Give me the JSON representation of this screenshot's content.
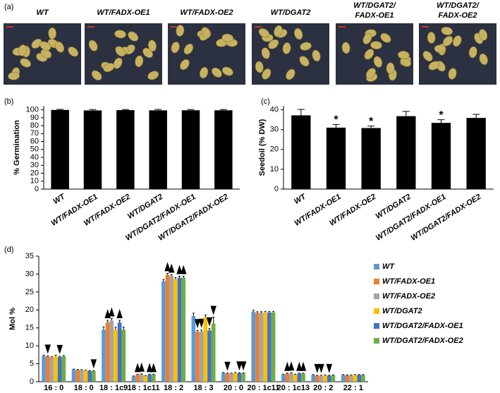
{
  "panel_labels": [
    "(a)",
    "(b)",
    "(c)",
    "(d)"
  ],
  "photo_labels": [
    [
      "WT"
    ],
    [
      "WT/FADX-OE1"
    ],
    [
      "WT/FADX-OE2"
    ],
    [
      "WT/DGAT2"
    ],
    [
      "WT/DGAT2/",
      "FADX-OE1"
    ],
    [
      "WT/DGAT2/",
      "FADX-OE2"
    ]
  ],
  "chart_data": [
    {
      "type": "bar",
      "ylabel": "% Germination",
      "categories": [
        "WT",
        "WT/FADX-OE1",
        "WT/FADX-OE2",
        "WT/DGAT2",
        "WT/DGAT2/FADX-OE1",
        "WT/DGAT2/FADX-OE2"
      ],
      "values": [
        99.8,
        99.2,
        99.6,
        99.3,
        99.4,
        99.4
      ],
      "errors": [
        0.8,
        1.2,
        0.8,
        1.2,
        1.0,
        1.0
      ],
      "color": "#000000",
      "ylim": [
        0,
        105
      ],
      "yticks": [
        0,
        10,
        20,
        30,
        40,
        50,
        60,
        70,
        80,
        90,
        100
      ]
    },
    {
      "type": "bar",
      "ylabel": "Seedoil (% DW)",
      "categories": [
        "WT",
        "WT/FADX-OE1",
        "WT/FADX-OE2",
        "WT/DGAT2",
        "WT/DGAT2/FADX-OE1",
        "WT/DGAT2/FADX-OE2"
      ],
      "values": [
        37.2,
        31.0,
        30.8,
        36.8,
        33.4,
        35.9
      ],
      "errors": [
        3.0,
        1.6,
        1.0,
        2.4,
        1.6,
        1.8
      ],
      "significance": [
        null,
        "*",
        "*",
        null,
        "*",
        null
      ],
      "color": "#000000",
      "ylim": [
        0,
        42
      ],
      "yticks": [
        0,
        10,
        20,
        30,
        40
      ]
    },
    {
      "type": "bar",
      "ylabel": "Mol %",
      "legend": "right",
      "categories": [
        "16 : 0",
        "18 : 0",
        "18 : 1c9",
        "18 : 1c11",
        "18 : 2",
        "18 : 3",
        "20 : 0",
        "20 : 1c11",
        "20 : 1c13",
        "20 : 2",
        "22 : 1"
      ],
      "ylim": [
        0,
        35
      ],
      "yticks": [
        0,
        5,
        10,
        15,
        20,
        25,
        30,
        35
      ],
      "series": [
        {
          "name": "WT",
          "color": "#5b9bd5",
          "values": [
            7.2,
            3.4,
            14.5,
            1.5,
            28.0,
            18.3,
            2.5,
            19.5,
            2.0,
            1.9,
            1.9
          ],
          "errors": [
            0.2,
            0.1,
            0.8,
            0.1,
            0.5,
            0.8,
            0.1,
            0.4,
            0.1,
            0.1,
            0.1
          ],
          "arrows": [
            null,
            null,
            null,
            null,
            null,
            null,
            null,
            null,
            null,
            null,
            null
          ]
        },
        {
          "name": "WT/FADX-OE1",
          "color": "#ed7d31",
          "values": [
            7.0,
            3.3,
            16.5,
            2.0,
            29.8,
            13.9,
            2.3,
            19.2,
            2.3,
            1.7,
            1.8
          ],
          "errors": [
            0.2,
            0.1,
            0.6,
            0.1,
            0.4,
            0.4,
            0.1,
            0.3,
            0.1,
            0.1,
            0.1
          ],
          "arrows": [
            "down",
            null,
            "up",
            "up",
            "up",
            "down",
            "down",
            null,
            "up",
            "down",
            null
          ]
        },
        {
          "name": "WT/FADX-OE2",
          "color": "#a5a5a5",
          "values": [
            6.8,
            3.3,
            17.0,
            2.1,
            29.5,
            14.0,
            2.3,
            19.2,
            2.4,
            1.7,
            1.8
          ],
          "errors": [
            0.2,
            0.1,
            0.6,
            0.1,
            0.3,
            0.4,
            0.1,
            0.3,
            0.1,
            0.1,
            0.1
          ],
          "arrows": [
            null,
            null,
            "up",
            "up",
            "up",
            "down",
            null,
            null,
            "up",
            "down",
            null
          ]
        },
        {
          "name": "WT/DGAT2",
          "color": "#ffc000",
          "values": [
            7.2,
            3.1,
            14.5,
            1.6,
            28.6,
            18.0,
            2.5,
            19.3,
            2.0,
            1.8,
            1.9
          ],
          "errors": [
            0.2,
            0.1,
            0.7,
            0.1,
            0.4,
            0.6,
            0.1,
            0.3,
            0.1,
            0.1,
            0.1
          ],
          "arrows": [
            null,
            null,
            null,
            null,
            null,
            null,
            null,
            null,
            null,
            null,
            null
          ]
        },
        {
          "name": "WT/DGAT2/FADX-OE1",
          "color": "#4472c4",
          "values": [
            6.9,
            3.0,
            16.5,
            2.0,
            29.0,
            14.3,
            2.4,
            19.3,
            2.3,
            1.7,
            1.9
          ],
          "errors": [
            0.2,
            0.1,
            0.6,
            0.1,
            0.4,
            0.5,
            0.1,
            0.3,
            0.1,
            0.1,
            0.1
          ],
          "arrows": [
            "down",
            null,
            "up",
            "up",
            "up",
            "down",
            "down",
            null,
            "up",
            "down",
            null
          ]
        },
        {
          "name": "WT/DGAT2/FADX-OE2",
          "color": "#70ad47",
          "values": [
            7.1,
            3.0,
            14.5,
            2.0,
            29.0,
            16.2,
            2.4,
            19.3,
            2.3,
            1.8,
            1.9
          ],
          "errors": [
            0.2,
            0.1,
            0.7,
            0.1,
            0.4,
            1.8,
            0.1,
            0.3,
            0.1,
            0.1,
            0.1
          ],
          "arrows": [
            null,
            "down",
            null,
            "up",
            "up",
            "down",
            "down",
            null,
            "up",
            null,
            null
          ]
        }
      ]
    }
  ]
}
